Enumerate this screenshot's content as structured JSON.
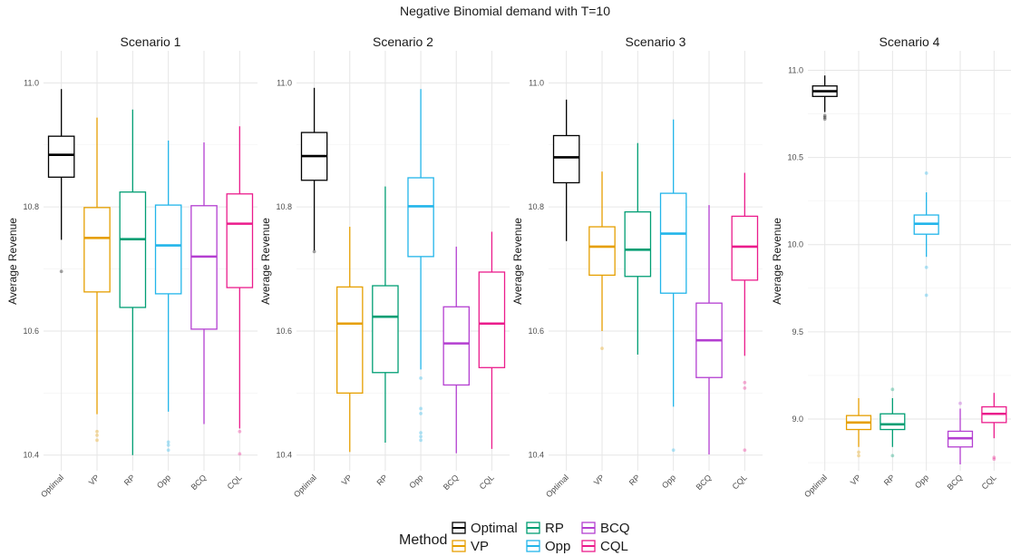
{
  "title": "Negative Binomial demand with T=10",
  "legend": {
    "title": "Method",
    "placement": "bottom",
    "items": [
      {
        "name": "Optimal",
        "color": "#000000"
      },
      {
        "name": "VP",
        "color": "#E69F00"
      },
      {
        "name": "RP",
        "color": "#009E73"
      },
      {
        "name": "Opp",
        "color": "#22B5EA"
      },
      {
        "name": "BCQ",
        "color": "#B43FD1"
      },
      {
        "name": "CQL",
        "color": "#EB1C8C"
      }
    ]
  },
  "chart_data": [
    {
      "type": "box",
      "title": "Scenario 1",
      "ylabel": "Average Revenue",
      "ylim": [
        10.385,
        11.04
      ],
      "yticks": [
        "10.4",
        "10.6",
        "10.8",
        "11.0"
      ],
      "categories": [
        "Optimal",
        "VP",
        "RP",
        "Opp",
        "BCQ",
        "CQL"
      ],
      "grid": true,
      "boxes": [
        {
          "name": "Optimal",
          "lower": 10.747,
          "q1": 10.848,
          "median": 10.884,
          "q3": 10.914,
          "upper": 10.99,
          "outliers": [
            10.696
          ]
        },
        {
          "name": "VP",
          "lower": 10.466,
          "q1": 10.663,
          "median": 10.75,
          "q3": 10.799,
          "upper": 10.944,
          "outliers": [
            10.438,
            10.432,
            10.424
          ]
        },
        {
          "name": "RP",
          "lower": 10.4,
          "q1": 10.638,
          "median": 10.748,
          "q3": 10.824,
          "upper": 10.957,
          "outliers": []
        },
        {
          "name": "Opp",
          "lower": 10.47,
          "q1": 10.66,
          "median": 10.738,
          "q3": 10.803,
          "upper": 10.907,
          "outliers": [
            10.421,
            10.416,
            10.408
          ]
        },
        {
          "name": "BCQ",
          "lower": 10.45,
          "q1": 10.603,
          "median": 10.72,
          "q3": 10.802,
          "upper": 10.904,
          "outliers": []
        },
        {
          "name": "CQL",
          "lower": 10.443,
          "q1": 10.67,
          "median": 10.773,
          "q3": 10.821,
          "upper": 10.93,
          "outliers": [
            10.438,
            10.402
          ]
        }
      ]
    },
    {
      "type": "box",
      "title": "Scenario 2",
      "ylabel": "Average Revenue",
      "ylim": [
        10.385,
        11.04
      ],
      "yticks": [
        "10.4",
        "10.6",
        "10.8",
        "11.0"
      ],
      "categories": [
        "Optimal",
        "VP",
        "RP",
        "Opp",
        "BCQ",
        "CQL"
      ],
      "grid": true,
      "boxes": [
        {
          "name": "Optimal",
          "lower": 10.73,
          "q1": 10.843,
          "median": 10.882,
          "q3": 10.92,
          "upper": 10.992,
          "outliers": [
            10.728
          ]
        },
        {
          "name": "VP",
          "lower": 10.405,
          "q1": 10.5,
          "median": 10.612,
          "q3": 10.671,
          "upper": 10.768,
          "outliers": []
        },
        {
          "name": "RP",
          "lower": 10.42,
          "q1": 10.533,
          "median": 10.623,
          "q3": 10.673,
          "upper": 10.833,
          "outliers": []
        },
        {
          "name": "Opp",
          "lower": 10.538,
          "q1": 10.72,
          "median": 10.801,
          "q3": 10.847,
          "upper": 10.99,
          "outliers": [
            10.524,
            10.475,
            10.467,
            10.436,
            10.43,
            10.424
          ]
        },
        {
          "name": "BCQ",
          "lower": 10.403,
          "q1": 10.513,
          "median": 10.58,
          "q3": 10.639,
          "upper": 10.736,
          "outliers": []
        },
        {
          "name": "CQL",
          "lower": 10.41,
          "q1": 10.541,
          "median": 10.612,
          "q3": 10.695,
          "upper": 10.76,
          "outliers": []
        }
      ]
    },
    {
      "type": "box",
      "title": "Scenario 3",
      "ylabel": "Average Revenue",
      "ylim": [
        10.385,
        11.04
      ],
      "yticks": [
        "10.4",
        "10.6",
        "10.8",
        "11.0"
      ],
      "categories": [
        "Optimal",
        "VP",
        "RP",
        "Opp",
        "BCQ",
        "CQL"
      ],
      "grid": true,
      "boxes": [
        {
          "name": "Optimal",
          "lower": 10.745,
          "q1": 10.839,
          "median": 10.88,
          "q3": 10.915,
          "upper": 10.973,
          "outliers": []
        },
        {
          "name": "VP",
          "lower": 10.6,
          "q1": 10.69,
          "median": 10.736,
          "q3": 10.768,
          "upper": 10.857,
          "outliers": [
            10.572
          ]
        },
        {
          "name": "RP",
          "lower": 10.562,
          "q1": 10.688,
          "median": 10.731,
          "q3": 10.792,
          "upper": 10.903,
          "outliers": []
        },
        {
          "name": "Opp",
          "lower": 10.478,
          "q1": 10.661,
          "median": 10.757,
          "q3": 10.822,
          "upper": 10.941,
          "outliers": [
            10.408
          ]
        },
        {
          "name": "BCQ",
          "lower": 10.401,
          "q1": 10.525,
          "median": 10.585,
          "q3": 10.645,
          "upper": 10.803,
          "outliers": []
        },
        {
          "name": "CQL",
          "lower": 10.56,
          "q1": 10.682,
          "median": 10.736,
          "q3": 10.785,
          "upper": 10.855,
          "outliers": [
            10.517,
            10.508,
            10.408
          ]
        }
      ]
    },
    {
      "type": "box",
      "title": "Scenario 4",
      "ylabel": "Average Revenue",
      "ylim": [
        8.74,
        11.07
      ],
      "yticks": [
        "9.0",
        "9.5",
        "10.0",
        "10.5",
        "11.0"
      ],
      "categories": [
        "Optimal",
        "VP",
        "RP",
        "Opp",
        "BCQ",
        "CQL"
      ],
      "grid": true,
      "boxes": [
        {
          "name": "Optimal",
          "lower": 10.76,
          "q1": 10.85,
          "median": 10.88,
          "q3": 10.91,
          "upper": 10.97,
          "outliers": [
            10.74,
            10.73,
            10.72
          ]
        },
        {
          "name": "VP",
          "lower": 8.84,
          "q1": 8.94,
          "median": 8.98,
          "q3": 9.02,
          "upper": 9.12,
          "outliers": [
            8.81,
            8.79
          ]
        },
        {
          "name": "RP",
          "lower": 8.84,
          "q1": 8.94,
          "median": 8.97,
          "q3": 9.03,
          "upper": 9.12,
          "outliers": [
            9.17,
            8.79
          ]
        },
        {
          "name": "Opp",
          "lower": 9.93,
          "q1": 10.06,
          "median": 10.12,
          "q3": 10.17,
          "upper": 10.3,
          "outliers": [
            10.41,
            9.87,
            9.71
          ]
        },
        {
          "name": "BCQ",
          "lower": 8.74,
          "q1": 8.84,
          "median": 8.89,
          "q3": 8.93,
          "upper": 9.06,
          "outliers": [
            9.09
          ]
        },
        {
          "name": "CQL",
          "lower": 8.89,
          "q1": 8.98,
          "median": 9.03,
          "q3": 9.07,
          "upper": 9.15,
          "outliers": [
            8.78,
            8.77
          ]
        }
      ]
    }
  ]
}
